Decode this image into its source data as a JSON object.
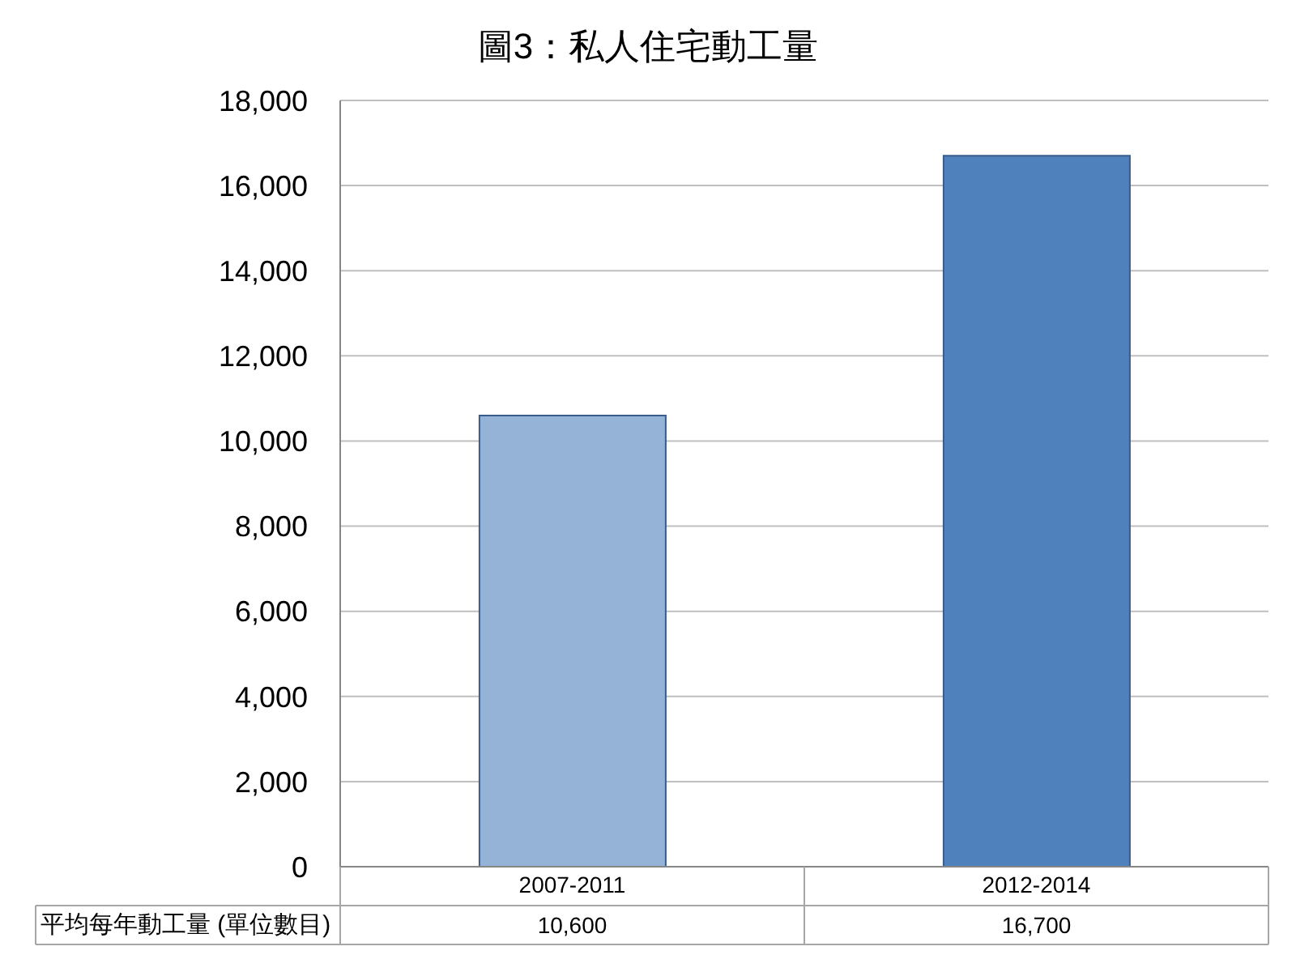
{
  "chart_data": {
    "type": "bar",
    "title": "圖3：私人住宅動工量",
    "categories": [
      "2007-2011",
      "2012-2014"
    ],
    "series": [
      {
        "name": "平均每年動工量 (單位數目)",
        "colors": [
          "#95b3d7",
          "#4f81bd"
        ],
        "values": [
          10600,
          16700
        ],
        "value_labels": [
          "10,600",
          "16,700"
        ]
      }
    ],
    "ylim": [
      0,
      18000
    ],
    "yticks": [
      0,
      {
        "value": 2000,
        "label": "2,000"
      },
      {
        "value": 4000,
        "label": "4,000"
      },
      {
        "value": 6000,
        "label": "6,000"
      },
      {
        "value": 8000,
        "label": "8,000"
      },
      {
        "value": 10000,
        "label": "10,000"
      },
      {
        "value": 12000,
        "label": "12,000"
      },
      {
        "value": 14000,
        "label": "14,000"
      },
      {
        "value": 16000,
        "label": "16,000"
      },
      {
        "value": 18000,
        "label": "18,000"
      }
    ],
    "grid": "y"
  }
}
